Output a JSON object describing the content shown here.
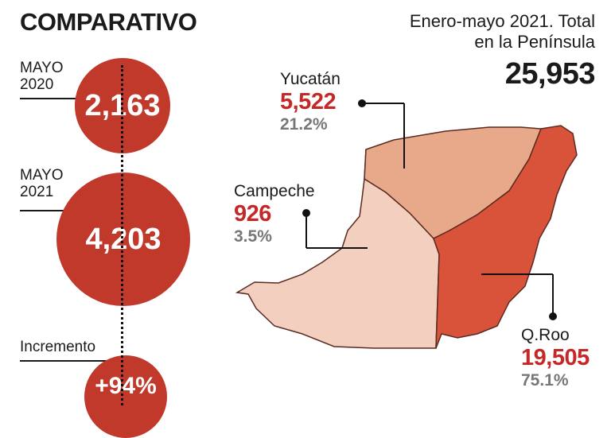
{
  "title": "COMPARATIVO",
  "colors": {
    "circle": "#c0392b",
    "yucatan": "#e8a98b",
    "campeche": "#f3cfbf",
    "qroo": "#d9533b",
    "value_red": "#c62828",
    "pct_gray": "#777777"
  },
  "left": {
    "may2020": {
      "label_line1": "MAYO",
      "label_line2": "2020",
      "value": "2,163"
    },
    "may2021": {
      "label_line1": "MAYO",
      "label_line2": "2021",
      "value": "4,203"
    },
    "increase": {
      "label": "Incremento",
      "value": "+94%"
    }
  },
  "summary": {
    "line1": "Enero-mayo 2021. Total",
    "line2": "en la Península",
    "total": "25,953"
  },
  "states": {
    "yucatan": {
      "name": "Yucatán",
      "value": "5,522",
      "pct": "21.2%"
    },
    "campeche": {
      "name": "Campeche",
      "value": "926",
      "pct": "3.5%"
    },
    "qroo": {
      "name": "Q.Roo",
      "value": "19,505",
      "pct": "75.1%"
    }
  }
}
